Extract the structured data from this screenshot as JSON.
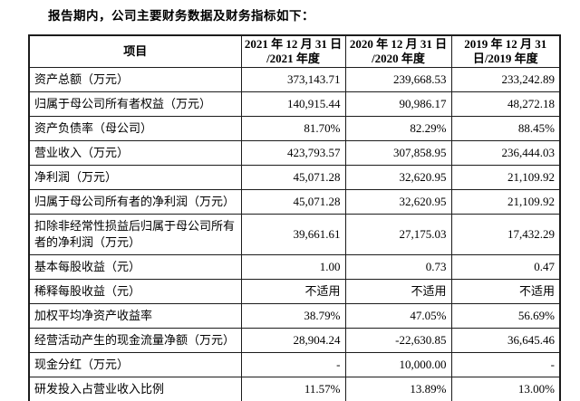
{
  "intro": "报告期内，公司主要财务数据及财务指标如下：",
  "table": {
    "header": {
      "item_label": "项目",
      "periods": [
        "2021 年 12 月 31 日\n/2021 年度",
        "2020 年 12 月 31 日\n/2020 年度",
        "2019 年 12 月 31\n日/2019 年度"
      ]
    },
    "rows": [
      {
        "label": "资产总额（万元）",
        "values": [
          "373,143.71",
          "239,668.53",
          "233,242.89"
        ]
      },
      {
        "label": "归属于母公司所有者权益（万元）",
        "values": [
          "140,915.44",
          "90,986.17",
          "48,272.18"
        ]
      },
      {
        "label": "资产负债率（母公司）",
        "values": [
          "81.70%",
          "82.29%",
          "88.45%"
        ]
      },
      {
        "label": "营业收入（万元）",
        "values": [
          "423,793.57",
          "307,858.95",
          "236,444.03"
        ]
      },
      {
        "label": "净利润（万元）",
        "values": [
          "45,071.28",
          "32,620.95",
          "21,109.92"
        ]
      },
      {
        "label": "归属于母公司所有者的净利润（万元）",
        "values": [
          "45,071.28",
          "32,620.95",
          "21,109.92"
        ]
      },
      {
        "label": "扣除非经常性损益后归属于母公司所有者的净利润（万元）",
        "values": [
          "39,661.61",
          "27,175.03",
          "17,432.29"
        ]
      },
      {
        "label": "基本每股收益（元）",
        "values": [
          "1.00",
          "0.73",
          "0.47"
        ]
      },
      {
        "label": "稀释每股收益（元）",
        "values": [
          "不适用",
          "不适用",
          "不适用"
        ]
      },
      {
        "label": "加权平均净资产收益率",
        "values": [
          "38.79%",
          "47.05%",
          "56.69%"
        ]
      },
      {
        "label": "经营活动产生的现金流量净额（万元）",
        "values": [
          "28,904.24",
          "-22,630.85",
          "36,645.46"
        ]
      },
      {
        "label": "现金分红（万元）",
        "values": [
          "-",
          "10,000.00",
          "-"
        ]
      },
      {
        "label": "研发投入占营业收入比例",
        "values": [
          "11.57%",
          "13.89%",
          "13.00%"
        ]
      }
    ]
  }
}
